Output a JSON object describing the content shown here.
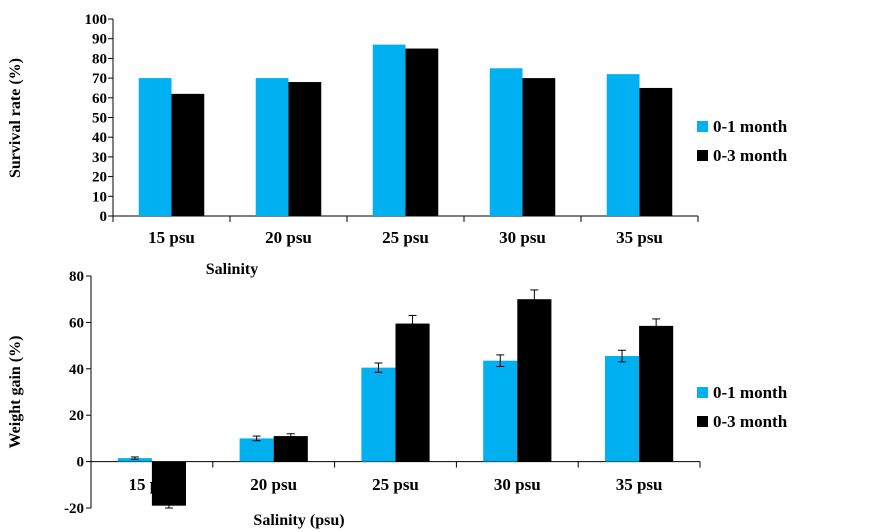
{
  "colors": {
    "series1": "#00B0F0",
    "series2": "#000000"
  },
  "chart_data": [
    {
      "type": "bar",
      "categories": [
        "15 psu",
        "20 psu",
        "25 psu",
        "30 psu",
        "35 psu"
      ],
      "series": [
        {
          "name": "0-1 month",
          "values": [
            70,
            70,
            87,
            75,
            72
          ]
        },
        {
          "name": "0-3 month",
          "values": [
            62,
            68,
            85,
            70,
            65
          ]
        }
      ],
      "xlabel": "Salinity",
      "ylabel": "Survival rate (%)",
      "ylim": [
        0,
        100
      ],
      "yticks": [
        0,
        10,
        20,
        30,
        40,
        50,
        60,
        70,
        80,
        90,
        100
      ],
      "legend": "right",
      "grid": false
    },
    {
      "type": "bar",
      "categories": [
        "15 psu",
        "20 psu",
        "25 psu",
        "30 psu",
        "35 psu"
      ],
      "series": [
        {
          "name": "0-1 month",
          "values": [
            1.5,
            10,
            40.5,
            43.5,
            45.5
          ],
          "errors": [
            0.5,
            1,
            2,
            2.5,
            2.5
          ]
        },
        {
          "name": "0-3 month",
          "values": [
            -19,
            11,
            59.5,
            70,
            58.5
          ],
          "errors": [
            1,
            1,
            3.5,
            4,
            3
          ]
        }
      ],
      "xlabel": "Salinity (psu)",
      "ylabel": "Weight gain (%)",
      "ylim": [
        -20,
        80
      ],
      "yticks": [
        -20,
        0,
        20,
        40,
        60,
        80
      ],
      "legend": "right",
      "grid": false
    }
  ]
}
